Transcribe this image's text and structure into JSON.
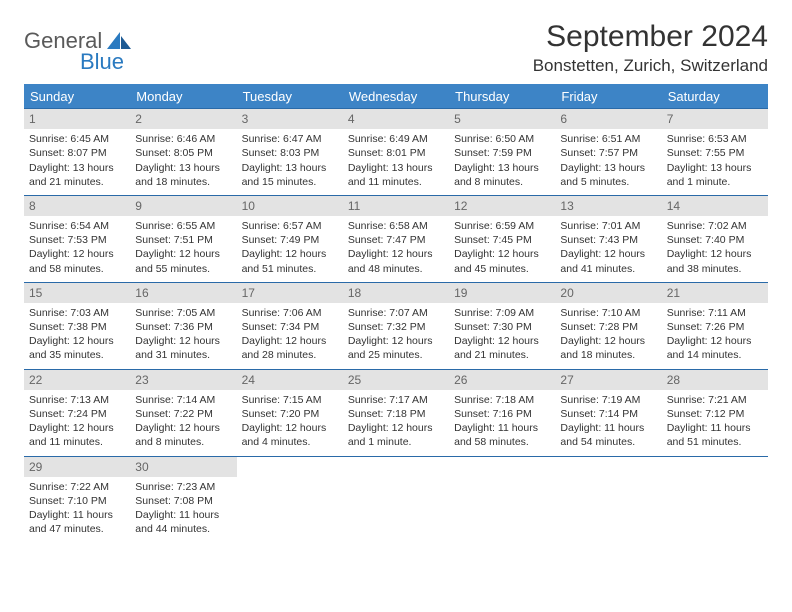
{
  "logo": {
    "general": "General",
    "blue": "Blue"
  },
  "title": "September 2024",
  "location": "Bonstetten, Zurich, Switzerland",
  "styling": {
    "header_bg": "#3d84c6",
    "header_text": "#ffffff",
    "daynum_bg": "#e3e3e3",
    "daynum_color": "#666666",
    "row_border": "#2a6aa8",
    "body_text": "#333333",
    "title_fontsize": 30,
    "location_fontsize": 17,
    "header_fontsize": 13,
    "cell_fontsize": 10.5,
    "logo_accent": "#2a7ac0",
    "page_bg": "#ffffff"
  },
  "weekdays": [
    "Sunday",
    "Monday",
    "Tuesday",
    "Wednesday",
    "Thursday",
    "Friday",
    "Saturday"
  ],
  "weeks": [
    [
      {
        "day": "1",
        "sunrise": "Sunrise: 6:45 AM",
        "sunset": "Sunset: 8:07 PM",
        "daylight": "Daylight: 13 hours and 21 minutes."
      },
      {
        "day": "2",
        "sunrise": "Sunrise: 6:46 AM",
        "sunset": "Sunset: 8:05 PM",
        "daylight": "Daylight: 13 hours and 18 minutes."
      },
      {
        "day": "3",
        "sunrise": "Sunrise: 6:47 AM",
        "sunset": "Sunset: 8:03 PM",
        "daylight": "Daylight: 13 hours and 15 minutes."
      },
      {
        "day": "4",
        "sunrise": "Sunrise: 6:49 AM",
        "sunset": "Sunset: 8:01 PM",
        "daylight": "Daylight: 13 hours and 11 minutes."
      },
      {
        "day": "5",
        "sunrise": "Sunrise: 6:50 AM",
        "sunset": "Sunset: 7:59 PM",
        "daylight": "Daylight: 13 hours and 8 minutes."
      },
      {
        "day": "6",
        "sunrise": "Sunrise: 6:51 AM",
        "sunset": "Sunset: 7:57 PM",
        "daylight": "Daylight: 13 hours and 5 minutes."
      },
      {
        "day": "7",
        "sunrise": "Sunrise: 6:53 AM",
        "sunset": "Sunset: 7:55 PM",
        "daylight": "Daylight: 13 hours and 1 minute."
      }
    ],
    [
      {
        "day": "8",
        "sunrise": "Sunrise: 6:54 AM",
        "sunset": "Sunset: 7:53 PM",
        "daylight": "Daylight: 12 hours and 58 minutes."
      },
      {
        "day": "9",
        "sunrise": "Sunrise: 6:55 AM",
        "sunset": "Sunset: 7:51 PM",
        "daylight": "Daylight: 12 hours and 55 minutes."
      },
      {
        "day": "10",
        "sunrise": "Sunrise: 6:57 AM",
        "sunset": "Sunset: 7:49 PM",
        "daylight": "Daylight: 12 hours and 51 minutes."
      },
      {
        "day": "11",
        "sunrise": "Sunrise: 6:58 AM",
        "sunset": "Sunset: 7:47 PM",
        "daylight": "Daylight: 12 hours and 48 minutes."
      },
      {
        "day": "12",
        "sunrise": "Sunrise: 6:59 AM",
        "sunset": "Sunset: 7:45 PM",
        "daylight": "Daylight: 12 hours and 45 minutes."
      },
      {
        "day": "13",
        "sunrise": "Sunrise: 7:01 AM",
        "sunset": "Sunset: 7:43 PM",
        "daylight": "Daylight: 12 hours and 41 minutes."
      },
      {
        "day": "14",
        "sunrise": "Sunrise: 7:02 AM",
        "sunset": "Sunset: 7:40 PM",
        "daylight": "Daylight: 12 hours and 38 minutes."
      }
    ],
    [
      {
        "day": "15",
        "sunrise": "Sunrise: 7:03 AM",
        "sunset": "Sunset: 7:38 PM",
        "daylight": "Daylight: 12 hours and 35 minutes."
      },
      {
        "day": "16",
        "sunrise": "Sunrise: 7:05 AM",
        "sunset": "Sunset: 7:36 PM",
        "daylight": "Daylight: 12 hours and 31 minutes."
      },
      {
        "day": "17",
        "sunrise": "Sunrise: 7:06 AM",
        "sunset": "Sunset: 7:34 PM",
        "daylight": "Daylight: 12 hours and 28 minutes."
      },
      {
        "day": "18",
        "sunrise": "Sunrise: 7:07 AM",
        "sunset": "Sunset: 7:32 PM",
        "daylight": "Daylight: 12 hours and 25 minutes."
      },
      {
        "day": "19",
        "sunrise": "Sunrise: 7:09 AM",
        "sunset": "Sunset: 7:30 PM",
        "daylight": "Daylight: 12 hours and 21 minutes."
      },
      {
        "day": "20",
        "sunrise": "Sunrise: 7:10 AM",
        "sunset": "Sunset: 7:28 PM",
        "daylight": "Daylight: 12 hours and 18 minutes."
      },
      {
        "day": "21",
        "sunrise": "Sunrise: 7:11 AM",
        "sunset": "Sunset: 7:26 PM",
        "daylight": "Daylight: 12 hours and 14 minutes."
      }
    ],
    [
      {
        "day": "22",
        "sunrise": "Sunrise: 7:13 AM",
        "sunset": "Sunset: 7:24 PM",
        "daylight": "Daylight: 12 hours and 11 minutes."
      },
      {
        "day": "23",
        "sunrise": "Sunrise: 7:14 AM",
        "sunset": "Sunset: 7:22 PM",
        "daylight": "Daylight: 12 hours and 8 minutes."
      },
      {
        "day": "24",
        "sunrise": "Sunrise: 7:15 AM",
        "sunset": "Sunset: 7:20 PM",
        "daylight": "Daylight: 12 hours and 4 minutes."
      },
      {
        "day": "25",
        "sunrise": "Sunrise: 7:17 AM",
        "sunset": "Sunset: 7:18 PM",
        "daylight": "Daylight: 12 hours and 1 minute."
      },
      {
        "day": "26",
        "sunrise": "Sunrise: 7:18 AM",
        "sunset": "Sunset: 7:16 PM",
        "daylight": "Daylight: 11 hours and 58 minutes."
      },
      {
        "day": "27",
        "sunrise": "Sunrise: 7:19 AM",
        "sunset": "Sunset: 7:14 PM",
        "daylight": "Daylight: 11 hours and 54 minutes."
      },
      {
        "day": "28",
        "sunrise": "Sunrise: 7:21 AM",
        "sunset": "Sunset: 7:12 PM",
        "daylight": "Daylight: 11 hours and 51 minutes."
      }
    ],
    [
      {
        "day": "29",
        "sunrise": "Sunrise: 7:22 AM",
        "sunset": "Sunset: 7:10 PM",
        "daylight": "Daylight: 11 hours and 47 minutes."
      },
      {
        "day": "30",
        "sunrise": "Sunrise: 7:23 AM",
        "sunset": "Sunset: 7:08 PM",
        "daylight": "Daylight: 11 hours and 44 minutes."
      },
      {
        "empty": true
      },
      {
        "empty": true
      },
      {
        "empty": true
      },
      {
        "empty": true
      },
      {
        "empty": true
      }
    ]
  ]
}
